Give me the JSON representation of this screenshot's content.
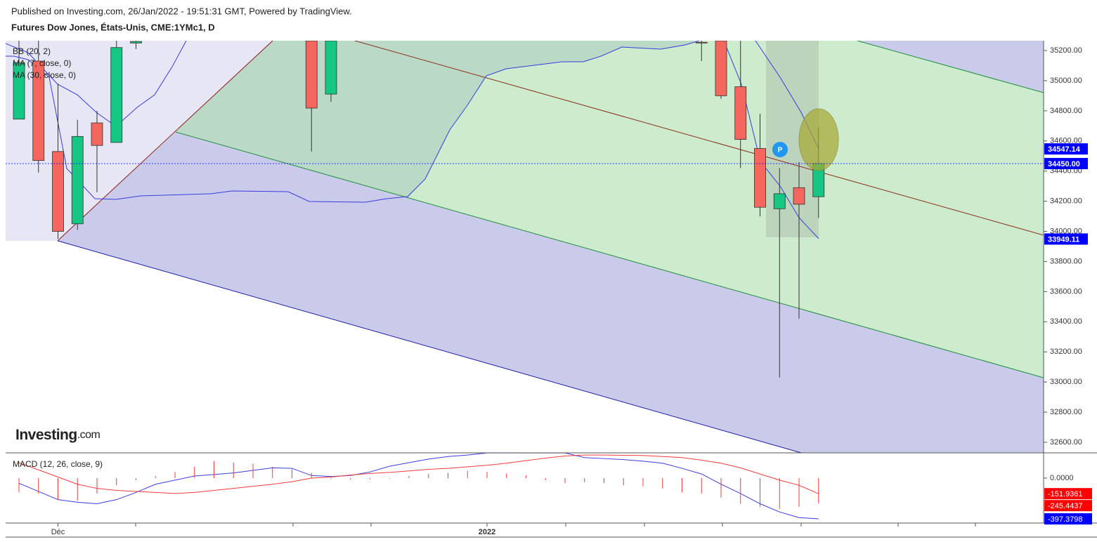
{
  "header": "Published on Investing.com, 26/Jan/2022 - 19:51:31 GMT, Powered by TradingView.",
  "logo": {
    "name": "Investing",
    "suffix": ".com"
  },
  "marker": "P",
  "chart_data": [
    {
      "type": "candlestick",
      "title": "Futures Dow Jones, États-Unis, CME:1YMc1, D",
      "indicators": [
        "BB (20, 2)",
        "MA (7, close, 0)",
        "MA (30, close, 0)"
      ],
      "x": [
        null,
        null,
        "Déc",
        null,
        null,
        null,
        null,
        null,
        null,
        null,
        null,
        null,
        null,
        null,
        null,
        null,
        null,
        null,
        null,
        null,
        null,
        null,
        null,
        null,
        "2022",
        null,
        null,
        null,
        null,
        null,
        null,
        null,
        null,
        null,
        null,
        null,
        null,
        null,
        null,
        null,
        null,
        null
      ],
      "open": [
        34745,
        35130,
        34530,
        34050,
        34720,
        34590,
        35250,
        null,
        null,
        null,
        null,
        null,
        null,
        null,
        null,
        35265,
        34911,
        null,
        null,
        null,
        null,
        null,
        null,
        null,
        null,
        null,
        null,
        null,
        null,
        null,
        null,
        null,
        null,
        null,
        null,
        35255,
        35265,
        34960,
        34550,
        34150,
        34290,
        34230
      ],
      "high": [
        35265,
        35265,
        34980,
        34740,
        34800,
        35265,
        35265,
        null,
        null,
        null,
        null,
        null,
        null,
        null,
        null,
        35265,
        35265,
        null,
        null,
        null,
        null,
        null,
        null,
        null,
        null,
        null,
        null,
        null,
        null,
        null,
        null,
        null,
        null,
        null,
        null,
        35265,
        35265,
        35265,
        34780,
        34420,
        34460,
        34690
      ],
      "low": [
        34745,
        34390,
        33950,
        34010,
        34260,
        34590,
        35210,
        null,
        null,
        null,
        null,
        null,
        null,
        null,
        null,
        34530,
        34860,
        null,
        null,
        null,
        null,
        null,
        null,
        null,
        null,
        null,
        null,
        null,
        null,
        null,
        null,
        null,
        null,
        null,
        null,
        35130,
        34880,
        34420,
        34100,
        33030,
        33420,
        34090
      ],
      "close": [
        35120,
        34470,
        34000,
        34630,
        34570,
        35220,
        35260,
        null,
        null,
        null,
        null,
        null,
        null,
        null,
        null,
        34818,
        35265,
        null,
        null,
        null,
        null,
        null,
        null,
        null,
        null,
        null,
        null,
        null,
        null,
        null,
        null,
        null,
        null,
        null,
        null,
        35250,
        34900,
        34610,
        34160,
        34250,
        34180,
        34450
      ],
      "up_color": "#16c784",
      "down_color": "#f4665e",
      "ylim": [
        32530,
        35265.3
      ],
      "yticks": [
        {
          "value": 32600,
          "label": "32600.00"
        },
        {
          "value": 32800,
          "label": "32800.00"
        },
        {
          "value": 33000,
          "label": "33000.00"
        },
        {
          "value": 33200,
          "label": "33200.00"
        },
        {
          "value": 33400,
          "label": "33400.00"
        },
        {
          "value": 33600,
          "label": "33600.00"
        },
        {
          "value": 33800,
          "label": "33800.00"
        },
        {
          "value": 34000,
          "label": "34000.00"
        },
        {
          "value": 34200,
          "label": "34200.00"
        },
        {
          "value": 34400,
          "label": "34400.00"
        },
        {
          "value": 34600,
          "label": "34600.00"
        },
        {
          "value": 34800,
          "label": "34800.00"
        },
        {
          "value": 35000,
          "label": "35000.00"
        },
        {
          "value": 35200,
          "label": "35200.00"
        }
      ],
      "price_labels": [
        {
          "value": 34547.14,
          "label": "34547.14"
        },
        {
          "value": 34450,
          "label": "34450.00"
        },
        {
          "value": 33949.11,
          "label": "33949.11"
        }
      ],
      "price_label_color": "#0000ff"
    },
    {
      "type": "macd",
      "title": "MACD (12, 26, close, 9)",
      "ylim": [
        -438,
        246
      ],
      "yticks": [
        {
          "value": 0,
          "label": "0.0000"
        }
      ],
      "series": [
        {
          "name": "MACD",
          "color": "#3b3bdb",
          "values": [
            -50,
            -130,
            -210,
            -235,
            -250,
            -210,
            -140,
            -60,
            -20,
            20,
            35,
            50,
            75,
            100,
            95,
            25,
            15,
            25,
            60,
            115,
            150,
            185,
            210,
            225,
            245,
            245,
            245,
            245,
            245,
            200,
            190,
            180,
            165,
            145,
            95,
            40,
            -60,
            -150,
            -250,
            -330,
            -385,
            -397.3798
          ],
          "value_labels": {
            "41": "-397.3798"
          },
          "label_color": "#0000ff"
        },
        {
          "name": "Signal",
          "color": "#f03c3c",
          "values": [
            150,
            80,
            10,
            -60,
            -100,
            -120,
            -130,
            -140,
            -150,
            -140,
            -120,
            -100,
            -80,
            -60,
            -35,
            0,
            10,
            30,
            45,
            55,
            70,
            85,
            95,
            110,
            125,
            145,
            170,
            195,
            215,
            225,
            225,
            222,
            220,
            210,
            200,
            175,
            145,
            100,
            40,
            -20,
            -70,
            -151.9361
          ],
          "value_labels": {
            "41": "-151.9361"
          },
          "label_color": "#ff0000"
        },
        {
          "name": "Histogram",
          "color": "#f03c3c",
          "values": [
            -140,
            -150,
            -210,
            -220,
            -150,
            -70,
            -20,
            20,
            60,
            110,
            165,
            150,
            140,
            110,
            85,
            50,
            -10,
            -15,
            -10,
            -5,
            20,
            40,
            50,
            70,
            60,
            45,
            25,
            -20,
            -50,
            -40,
            -50,
            -70,
            -80,
            -100,
            -140,
            -150,
            -190,
            -250,
            -280,
            -300,
            -280,
            -245.4437
          ],
          "value_labels": {
            "41": "-245.4437"
          },
          "label_color": "#ff0000"
        }
      ]
    }
  ]
}
